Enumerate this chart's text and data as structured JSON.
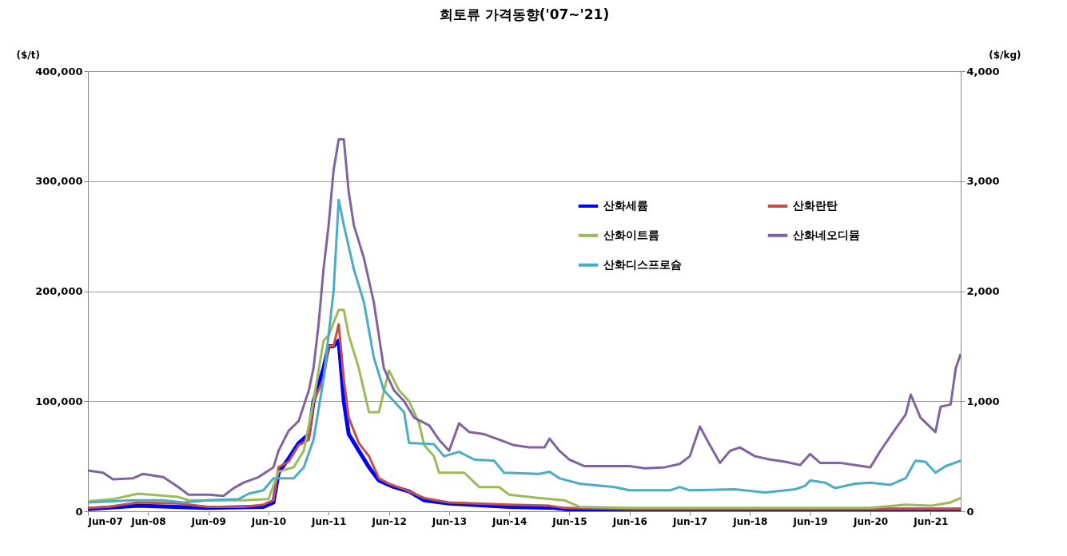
{
  "chart_data": {
    "type": "line",
    "title": "희토류 가격동향('07~'21)",
    "ylabel": "($/t)",
    "y2label": "($/kg)",
    "xlim": [
      "2007-06",
      "2021-12"
    ],
    "xticks": [
      {
        "value": "2007-06",
        "label": "Jun-07"
      },
      {
        "value": "2008-06",
        "label": "Jun-08"
      },
      {
        "value": "2009-06",
        "label": "Jun-09"
      },
      {
        "value": "2010-06",
        "label": "Jun-10"
      },
      {
        "value": "2011-06",
        "label": "Jun-11"
      },
      {
        "value": "2012-06",
        "label": "Jun-12"
      },
      {
        "value": "2013-06",
        "label": "Jun-13"
      },
      {
        "value": "2014-06",
        "label": "Jun-14"
      },
      {
        "value": "2015-06",
        "label": "Jun-15"
      },
      {
        "value": "2016-06",
        "label": "Jun-16"
      },
      {
        "value": "2017-06",
        "label": "Jun-17"
      },
      {
        "value": "2018-06",
        "label": "Jun-18"
      },
      {
        "value": "2019-06",
        "label": "Jun-19"
      },
      {
        "value": "2020-06",
        "label": "Jun-20"
      },
      {
        "value": "2021-06",
        "label": "Jun-21"
      }
    ],
    "ylim": [
      0,
      400000
    ],
    "yticks": [
      0,
      {
        "value": 100000,
        "label": "100,000"
      },
      {
        "value": 200000,
        "label": "200,000"
      },
      {
        "value": 300000,
        "label": "300,000"
      },
      {
        "value": 400000,
        "label": "400,000"
      }
    ],
    "y2lim": [
      0,
      4000
    ],
    "y2ticks": [
      0,
      {
        "value": 1000,
        "label": "1,000"
      },
      {
        "value": 2000,
        "label": "2,000"
      },
      {
        "value": 3000,
        "label": "3,000"
      },
      {
        "value": 4000,
        "label": "4,000"
      }
    ],
    "grid": "y",
    "legend": "top right",
    "series": [
      {
        "name": "산화세륨",
        "color": "#0000ff",
        "x": [
          "2007-06",
          "2008-04",
          "2009-06",
          "2010-05",
          "2010-07",
          "2010-08",
          "2010-10",
          "2010-12",
          "2011-02",
          "2011-03",
          "2011-05",
          "2011-06",
          "2011-07",
          "2011-08",
          "2011-09",
          "2011-10",
          "2011-12",
          "2012-02",
          "2012-04",
          "2012-07",
          "2012-10",
          "2013-01",
          "2013-06",
          "2014-06",
          "2015-03",
          "2015-06",
          "2016-06",
          "2021-12"
        ],
        "values": [
          2000,
          5000,
          3000,
          4000,
          8000,
          35000,
          48000,
          62000,
          70000,
          100000,
          130000,
          150000,
          150000,
          155000,
          100000,
          70000,
          55000,
          40000,
          28000,
          22000,
          18000,
          10000,
          7000,
          4000,
          3000,
          1500,
          1500,
          1500
        ]
      },
      {
        "name": "산화란탄",
        "color": "#c0504d",
        "x": [
          "2007-06",
          "2007-10",
          "2008-04",
          "2008-12",
          "2009-06",
          "2010-01",
          "2010-05",
          "2010-07",
          "2010-08",
          "2010-10",
          "2010-12",
          "2011-02",
          "2011-03",
          "2011-05",
          "2011-06",
          "2011-07",
          "2011-08",
          "2011-09",
          "2011-10",
          "2011-12",
          "2012-02",
          "2012-04",
          "2012-06",
          "2012-09",
          "2013-01",
          "2013-06",
          "2014-06",
          "2015-02",
          "2015-05",
          "2016-06",
          "2021-12"
        ],
        "values": [
          3000,
          4000,
          8000,
          7000,
          4000,
          4000,
          6000,
          10000,
          40000,
          45000,
          60000,
          65000,
          100000,
          120000,
          150000,
          150000,
          170000,
          120000,
          85000,
          62000,
          50000,
          30000,
          25000,
          20000,
          12000,
          8000,
          6000,
          5000,
          3000,
          2000,
          2000
        ]
      },
      {
        "name": "산화이트륨",
        "color": "#9bbb59",
        "x": [
          "2007-06",
          "2007-11",
          "2008-04",
          "2008-12",
          "2009-02",
          "2009-06",
          "2010-01",
          "2010-06",
          "2010-08",
          "2010-11",
          "2011-01",
          "2011-03",
          "2011-05",
          "2011-06",
          "2011-08",
          "2011-09",
          "2011-10",
          "2011-12",
          "2012-02",
          "2012-04",
          "2012-06",
          "2012-08",
          "2012-10",
          "2012-12",
          "2013-01",
          "2013-03",
          "2013-04",
          "2013-09",
          "2013-12",
          "2014-04",
          "2014-06",
          "2014-12",
          "2015-05",
          "2015-08",
          "2016-06",
          "2018-06",
          "2020-06",
          "2021-01",
          "2021-06",
          "2021-10",
          "2021-12"
        ],
        "values": [
          9000,
          11000,
          16000,
          13000,
          10000,
          10000,
          10000,
          11000,
          36000,
          40000,
          55000,
          100000,
          155000,
          160000,
          183000,
          183000,
          160000,
          130000,
          90000,
          90000,
          128000,
          110000,
          100000,
          80000,
          60000,
          50000,
          35000,
          35000,
          22000,
          22000,
          15000,
          12000,
          10000,
          4000,
          3000,
          3000,
          3000,
          6000,
          5000,
          8000,
          12000
        ]
      },
      {
        "name": "산화네오디뮴",
        "color": "#8064a2",
        "x": [
          "2007-06",
          "2007-09",
          "2007-11",
          "2008-03",
          "2008-05",
          "2008-09",
          "2008-12",
          "2009-02",
          "2009-06",
          "2009-09",
          "2009-11",
          "2010-01",
          "2010-04",
          "2010-07",
          "2010-08",
          "2010-10",
          "2010-12",
          "2011-02",
          "2011-03",
          "2011-04",
          "2011-05",
          "2011-06",
          "2011-07",
          "2011-08",
          "2011-09",
          "2011-10",
          "2011-11",
          "2012-01",
          "2012-03",
          "2012-05",
          "2012-07",
          "2012-09",
          "2012-11",
          "2013-02",
          "2013-04",
          "2013-06",
          "2013-08",
          "2013-10",
          "2014-01",
          "2014-04",
          "2014-07",
          "2014-10",
          "2015-01",
          "2015-02",
          "2015-04",
          "2015-06",
          "2015-09",
          "2016-01",
          "2016-06",
          "2016-09",
          "2017-01",
          "2017-04",
          "2017-06",
          "2017-08",
          "2017-10",
          "2017-12",
          "2018-02",
          "2018-04",
          "2018-07",
          "2018-10",
          "2019-01",
          "2019-04",
          "2019-06",
          "2019-08",
          "2019-12",
          "2020-03",
          "2020-06",
          "2020-08",
          "2020-11",
          "2021-01",
          "2021-02",
          "2021-04",
          "2021-07",
          "2021-08",
          "2021-10",
          "2021-11",
          "2021-12"
        ],
        "values": [
          37000,
          35000,
          29000,
          30000,
          34000,
          31000,
          22000,
          15000,
          15000,
          14000,
          21000,
          26000,
          31000,
          40000,
          55000,
          73000,
          82000,
          110000,
          130000,
          170000,
          220000,
          260000,
          310000,
          338000,
          338000,
          290000,
          260000,
          230000,
          190000,
          130000,
          110000,
          100000,
          85000,
          78000,
          65000,
          55000,
          80000,
          72000,
          70000,
          65000,
          60000,
          58000,
          58000,
          66000,
          55000,
          47000,
          41000,
          41000,
          41000,
          39000,
          40000,
          43000,
          50000,
          77000,
          60000,
          44000,
          55000,
          58000,
          50000,
          47000,
          45000,
          42000,
          52000,
          44000,
          44000,
          42000,
          40000,
          55000,
          75000,
          88000,
          106000,
          85000,
          72000,
          95000,
          97000,
          130000,
          143000
        ]
      },
      {
        "name": "산화디스프로슘",
        "color": "#4bacc6",
        "axis": "y2",
        "x": [
          "2007-06",
          "2008-03",
          "2008-09",
          "2009-01",
          "2009-06",
          "2009-12",
          "2010-02",
          "2010-05",
          "2010-07",
          "2010-11",
          "2011-01",
          "2011-03",
          "2011-05",
          "2011-07",
          "2011-08",
          "2011-09",
          "2011-11",
          "2012-01",
          "2012-03",
          "2012-05",
          "2012-07",
          "2012-09",
          "2012-10",
          "2013-03",
          "2013-05",
          "2013-08",
          "2013-11",
          "2014-03",
          "2014-05",
          "2014-12",
          "2015-02",
          "2015-04",
          "2015-08",
          "2016-03",
          "2016-06",
          "2017-02",
          "2017-04",
          "2017-06",
          "2018-03",
          "2018-09",
          "2019-03",
          "2019-05",
          "2019-06",
          "2019-09",
          "2019-11",
          "2020-03",
          "2020-06",
          "2020-10",
          "2021-01",
          "2021-03",
          "2021-05",
          "2021-07",
          "2021-09",
          "2021-12"
        ],
        "values": [
          80,
          100,
          100,
          80,
          100,
          110,
          160,
          190,
          300,
          300,
          400,
          650,
          1200,
          2000,
          2830,
          2600,
          2200,
          1900,
          1400,
          1100,
          1000,
          900,
          620,
          610,
          500,
          540,
          470,
          460,
          350,
          340,
          360,
          300,
          250,
          220,
          190,
          190,
          220,
          190,
          200,
          170,
          200,
          230,
          280,
          260,
          210,
          250,
          260,
          240,
          300,
          460,
          450,
          350,
          410,
          460
        ]
      }
    ]
  }
}
